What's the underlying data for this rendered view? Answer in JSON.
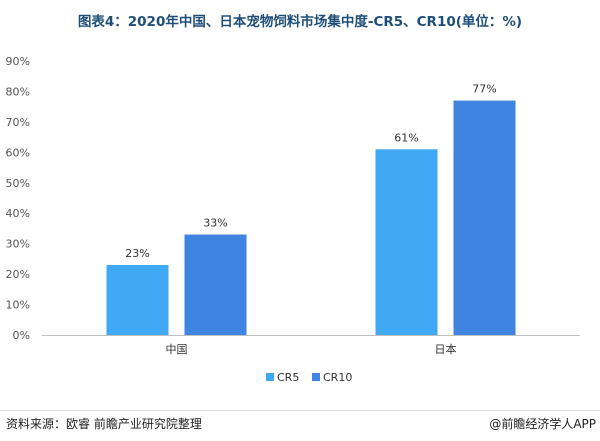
{
  "title": "图表4：2020年中国、日本宠物饲料市场集中度-CR5、CR10(单位：%)",
  "source": "资料来源：欧睿 前瞻产业研究院整理",
  "brand": "@前瞻经济学人APP",
  "chart_data": {
    "type": "bar",
    "title": "图表4：2020年中国、日本宠物饲料市场集中度-CR5、CR10(单位：%)",
    "categories": [
      "中国",
      "日本"
    ],
    "series": [
      {
        "name": "CR5",
        "values": [
          23,
          61
        ],
        "color": "#3fa9f5"
      },
      {
        "name": "CR10",
        "values": [
          33,
          77
        ],
        "color": "#3e84e0"
      }
    ],
    "data_labels": [
      [
        "23%",
        "61%"
      ],
      [
        "33%",
        "77%"
      ]
    ],
    "yticks": [
      "0%",
      "10%",
      "20%",
      "30%",
      "40%",
      "50%",
      "60%",
      "70%",
      "80%",
      "90%"
    ],
    "ylim": [
      0,
      90
    ],
    "xlabel": "",
    "ylabel": "",
    "grid": false,
    "legend_position": "bottom"
  }
}
